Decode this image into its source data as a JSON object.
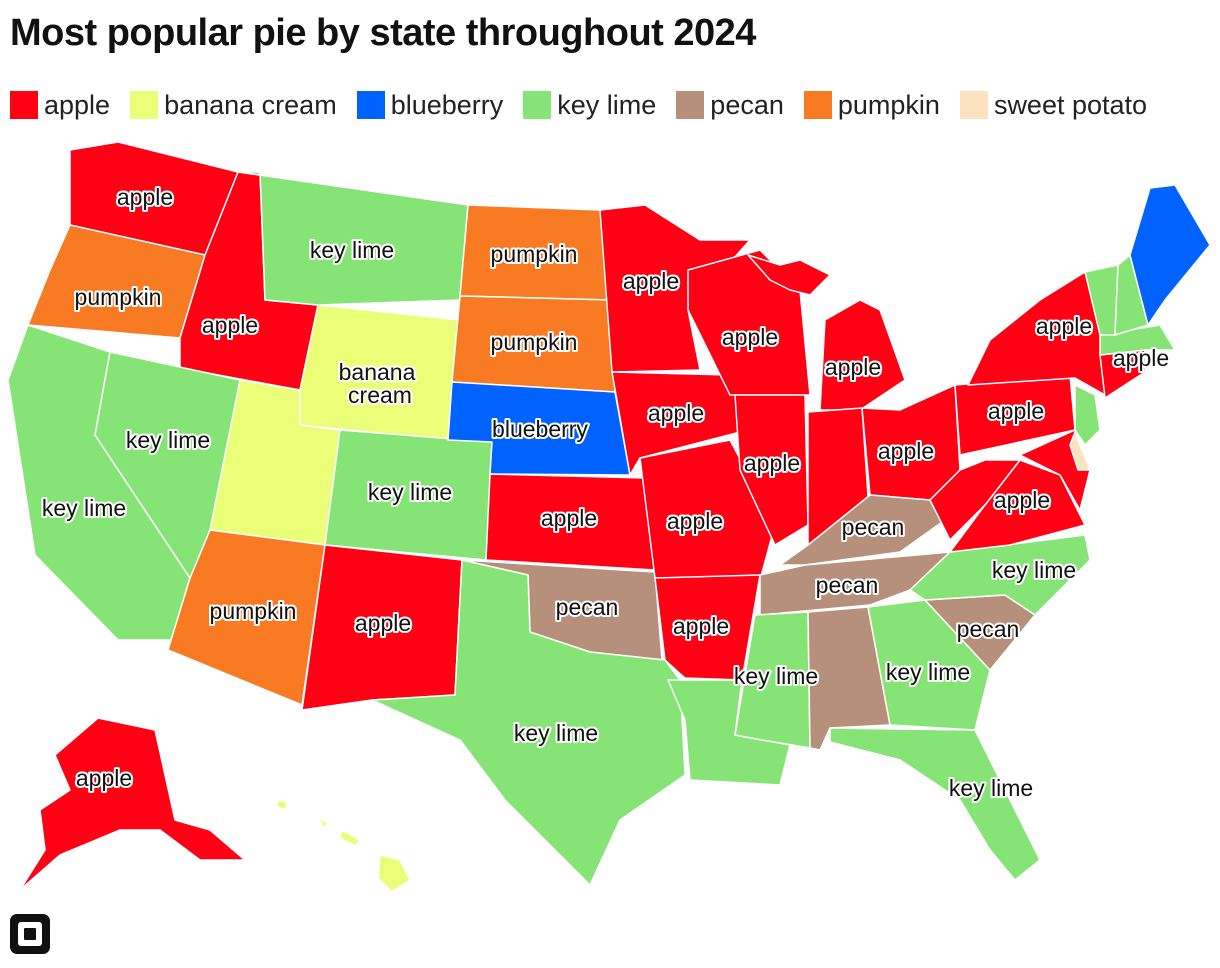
{
  "title": "Most popular pie by state throughout 2024",
  "legend": [
    {
      "key": "apple",
      "label": "apple",
      "color": "#ff0015"
    },
    {
      "key": "banana",
      "label": "banana cream",
      "color": "#ebfe78"
    },
    {
      "key": "blueberry",
      "label": "blueberry",
      "color": "#0063ff"
    },
    {
      "key": "keylime",
      "label": "key lime",
      "color": "#86e476"
    },
    {
      "key": "pecan",
      "label": "pecan",
      "color": "#b6907a"
    },
    {
      "key": "pumpkin",
      "label": "pumpkin",
      "color": "#f87a22"
    },
    {
      "key": "sweetpotato",
      "label": "sweet potato",
      "color": "#fde2bf"
    }
  ],
  "labels": {
    "wa": "apple",
    "or": "pumpkin",
    "id": "apple",
    "mt": "key lime",
    "wy1": "banana",
    "wy2": "cream",
    "nd": "pumpkin",
    "sd": "pumpkin",
    "ne": "blueberry",
    "ca": "key lime",
    "nv": "key lime",
    "co": "key lime",
    "az": "pumpkin",
    "nm": "apple",
    "ks": "apple",
    "ok": "pecan",
    "tx": "key lime",
    "mn": "apple",
    "ia": "apple",
    "mo": "apple",
    "ar": "apple",
    "wi": "apple",
    "il": "apple",
    "mi": "apple",
    "oh": "apple",
    "ky": "pecan",
    "tn": "pecan",
    "ms": "key lime",
    "ga": "key lime",
    "fl": "key lime",
    "sc": "pecan",
    "nc": "key lime",
    "va": "apple",
    "pa": "apple",
    "ny": "apple",
    "ne_states": "apple",
    "ak": "apple"
  }
}
